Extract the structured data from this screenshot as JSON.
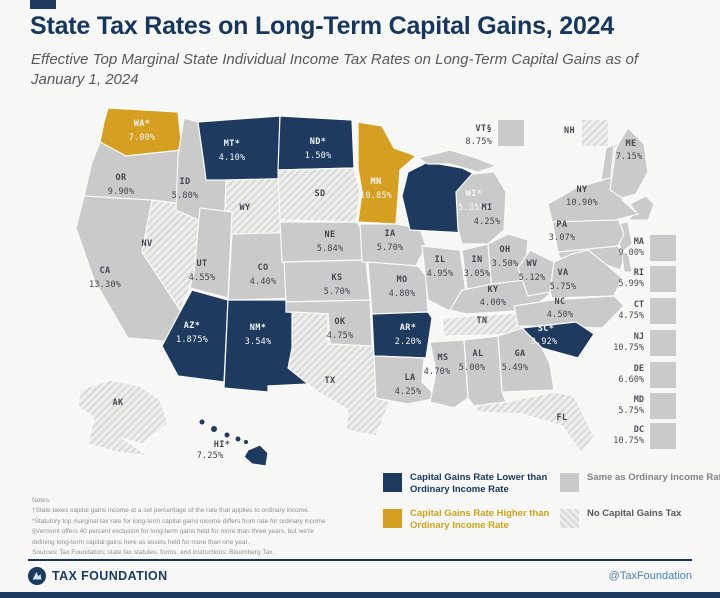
{
  "header": {
    "title": "State Tax Rates on Long-Term Capital Gains, 2024",
    "subtitle": "Effective Top Marginal State Individual Income Tax Rates on Long-Term Capital Gains as of January 1, 2024"
  },
  "chart_data": {
    "type": "choropleth",
    "title": "State Tax Rates on Long-Term Capital Gains, 2024",
    "unit": "percent",
    "colors": {
      "lower": "#1e3a5f",
      "higher": "#d5a021",
      "same": "#c9cac9"
    },
    "categories": {
      "lower": "Capital Gains Rate Lower than Ordinary Income Rate",
      "higher": "Capital Gains Rate Higher than Ordinary Income Rate",
      "same": "Same as Ordinary Income Rate",
      "none": "No Capital Gains Tax"
    },
    "states": [
      {
        "code": "WA",
        "label": "WA*",
        "value": "7.00%",
        "category": "higher"
      },
      {
        "code": "OR",
        "label": "OR",
        "value": "9.90%",
        "category": "same"
      },
      {
        "code": "CA",
        "label": "CA",
        "value": "13.30%",
        "category": "same"
      },
      {
        "code": "NV",
        "label": "NV",
        "value": "",
        "category": "none"
      },
      {
        "code": "ID",
        "label": "ID",
        "value": "5.80%",
        "category": "same"
      },
      {
        "code": "MT",
        "label": "MT*",
        "value": "4.10%",
        "category": "lower"
      },
      {
        "code": "WY",
        "label": "WY",
        "value": "",
        "category": "none"
      },
      {
        "code": "UT",
        "label": "UT",
        "value": "4.55%",
        "category": "same"
      },
      {
        "code": "CO",
        "label": "CO",
        "value": "4.40%",
        "category": "same"
      },
      {
        "code": "AZ",
        "label": "AZ*",
        "value": "1.875%",
        "category": "lower"
      },
      {
        "code": "NM",
        "label": "NM*",
        "value": "3.54%",
        "category": "lower"
      },
      {
        "code": "ND",
        "label": "ND*",
        "value": "1.50%",
        "category": "lower"
      },
      {
        "code": "SD",
        "label": "SD",
        "value": "",
        "category": "none"
      },
      {
        "code": "NE",
        "label": "NE",
        "value": "5.84%",
        "category": "same"
      },
      {
        "code": "KS",
        "label": "KS",
        "value": "5.70%",
        "category": "same"
      },
      {
        "code": "OK",
        "label": "OK",
        "value": "4.75%",
        "category": "same"
      },
      {
        "code": "TX",
        "label": "TX",
        "value": "",
        "category": "none"
      },
      {
        "code": "MN",
        "label": "MN",
        "value": "10.85%",
        "category": "higher"
      },
      {
        "code": "IA",
        "label": "IA",
        "value": "5.70%",
        "category": "same"
      },
      {
        "code": "MO",
        "label": "MO",
        "value": "4.80%",
        "category": "same"
      },
      {
        "code": "AR",
        "label": "AR*",
        "value": "2.20%",
        "category": "lower"
      },
      {
        "code": "LA",
        "label": "LA",
        "value": "4.25%",
        "category": "same"
      },
      {
        "code": "WI",
        "label": "WI*",
        "value": "5.355%",
        "category": "lower"
      },
      {
        "code": "IL",
        "label": "IL",
        "value": "4.95%",
        "category": "same"
      },
      {
        "code": "IN",
        "label": "IN",
        "value": "3.05%",
        "category": "same"
      },
      {
        "code": "MI",
        "label": "MI",
        "value": "4.25%",
        "category": "same"
      },
      {
        "code": "OH",
        "label": "OH",
        "value": "3.50%",
        "category": "same"
      },
      {
        "code": "KY",
        "label": "KY",
        "value": "4.00%",
        "category": "same"
      },
      {
        "code": "TN",
        "label": "TN",
        "value": "",
        "category": "none"
      },
      {
        "code": "WV",
        "label": "WV",
        "value": "5.12%",
        "category": "same"
      },
      {
        "code": "VA",
        "label": "VA",
        "value": "5.75%",
        "category": "same"
      },
      {
        "code": "NC",
        "label": "NC",
        "value": "4.50%",
        "category": "same"
      },
      {
        "code": "SC",
        "label": "SC*",
        "value": "3.92%",
        "category": "lower"
      },
      {
        "code": "GA",
        "label": "GA",
        "value": "5.49%",
        "category": "same"
      },
      {
        "code": "AL",
        "label": "AL",
        "value": "5.00%",
        "category": "same"
      },
      {
        "code": "MS",
        "label": "MS",
        "value": "4.70%",
        "category": "same"
      },
      {
        "code": "FL",
        "label": "FL",
        "value": "",
        "category": "none"
      },
      {
        "code": "PA",
        "label": "PA",
        "value": "3.07%",
        "category": "same"
      },
      {
        "code": "NY",
        "label": "NY",
        "value": "10.90%",
        "category": "same"
      },
      {
        "code": "ME",
        "label": "ME",
        "value": "7.15%",
        "category": "same"
      },
      {
        "code": "VT",
        "label": "VT§",
        "value": "8.75%",
        "category": "same"
      },
      {
        "code": "NH",
        "label": "NH",
        "value": "",
        "category": "none"
      },
      {
        "code": "MA",
        "label": "MA",
        "value": "9.00%",
        "category": "same"
      },
      {
        "code": "RI",
        "label": "RI",
        "value": "5.99%",
        "category": "same"
      },
      {
        "code": "CT",
        "label": "CT",
        "value": "4.75%",
        "category": "same"
      },
      {
        "code": "NJ",
        "label": "NJ",
        "value": "10.75%",
        "category": "same"
      },
      {
        "code": "DE",
        "label": "DE",
        "value": "6.60%",
        "category": "same"
      },
      {
        "code": "MD",
        "label": "MD",
        "value": "5.75%",
        "category": "same"
      },
      {
        "code": "DC",
        "label": "DC",
        "value": "10.75%",
        "category": "same"
      },
      {
        "code": "AK",
        "label": "AK",
        "value": "",
        "category": "none"
      },
      {
        "code": "HI",
        "label": "HI*",
        "value": "7.25%",
        "category": "lower"
      }
    ]
  },
  "legend": {
    "items": [
      {
        "label": "Capital Gains Rate Lower than Ordinary Income Rate",
        "category": "lower"
      },
      {
        "label": "Same as Ordinary Income Rate",
        "category": "same"
      },
      {
        "label": "Capital Gains Rate Higher than Ordinary Income Rate",
        "category": "higher"
      },
      {
        "label": "No Capital Gains Tax",
        "category": "none"
      }
    ]
  },
  "notes": {
    "lines": [
      "Notes:",
      "†State taxes capital gains income at a set percentage of the rate that applies to ordinary income.",
      "*Statutory top marginal tax rate for long-term capital gains income differs from rate for ordinary income",
      "§Vermont offers 40 percent exclusion for long-term gains held for more than three years, but we're",
      "defining long-term capital gains here as assets held for more than one year.",
      "Sources: Tax Foundation; state tax statutes, forms, and instructions; Bloomberg Tax."
    ]
  },
  "footer": {
    "brand": "TAX FOUNDATION",
    "handle": "@TaxFoundation"
  }
}
